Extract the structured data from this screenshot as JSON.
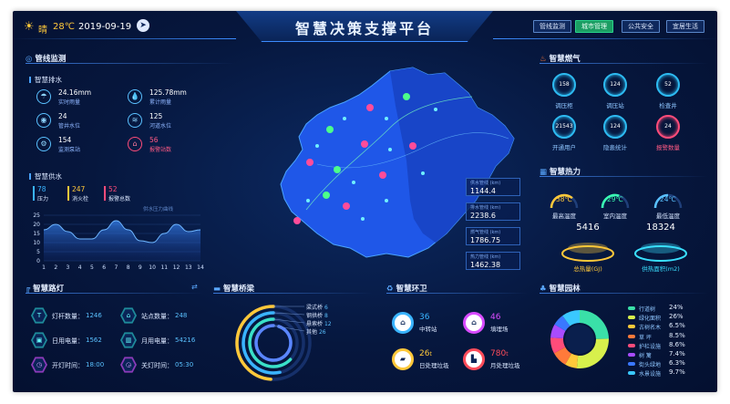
{
  "header": {
    "title": "智慧决策支撑平台",
    "weather": "晴",
    "temperature": "28℃",
    "date": "2019-09-19",
    "nav_tabs": [
      {
        "label": "管线监测",
        "active": false
      },
      {
        "label": "城市管理",
        "active": true
      },
      {
        "label": "公共安全",
        "active": false
      },
      {
        "label": "宜居生活",
        "active": false
      }
    ]
  },
  "pipeline": {
    "title": "管线监测",
    "drainage": {
      "title": "智慧排水",
      "items": [
        {
          "value": "24.16mm",
          "label": "实时雨量",
          "icon": "rain-icon",
          "alert": false
        },
        {
          "value": "125.78mm",
          "label": "累计雨量",
          "icon": "drops-icon",
          "alert": false
        },
        {
          "value": "24",
          "label": "管井水位",
          "icon": "well-icon",
          "alert": false
        },
        {
          "value": "125",
          "label": "河道水位",
          "icon": "river-icon",
          "alert": false
        },
        {
          "value": "154",
          "label": "监测泵站",
          "icon": "pump-icon",
          "alert": false
        },
        {
          "value": "56",
          "label": "报警站数",
          "icon": "alarm-house-icon",
          "alert": true
        }
      ]
    },
    "supply": {
      "title": "智慧供水",
      "stats": [
        {
          "value": "78",
          "label": "压力",
          "color": "#3ab4ff"
        },
        {
          "value": "247",
          "label": "消火栓",
          "color": "#ffc83a"
        },
        {
          "value": "52",
          "label": "报警总数",
          "color": "#ff4c7a"
        }
      ],
      "chart_caption": "供水压力曲线"
    }
  },
  "map_stats": [
    {
      "label": "供水管线 (km)",
      "value": "1144.4"
    },
    {
      "label": "排水管线 (km)",
      "value": "2238.6"
    },
    {
      "label": "燃气管线 (km)",
      "value": "1786.75"
    },
    {
      "label": "热力管线 (km)",
      "value": "1462.38"
    }
  ],
  "gas": {
    "title": "智慧燃气",
    "items": [
      {
        "value": "158",
        "label": "调压柜",
        "alert": false
      },
      {
        "value": "124",
        "label": "调压站",
        "alert": false
      },
      {
        "value": "52",
        "label": "检查井",
        "alert": false
      },
      {
        "value": "21543",
        "label": "开通用户",
        "alert": false
      },
      {
        "value": "124",
        "label": "隐患统计",
        "alert": false
      },
      {
        "value": "24",
        "label": "报警数量",
        "alert": true
      }
    ]
  },
  "heat": {
    "title": "智慧热力",
    "temps": [
      {
        "value": "38℃",
        "label": "最高温度",
        "color": "#ffc83a",
        "fraction": 0.72
      },
      {
        "value": "29℃",
        "label": "室内温度",
        "color": "#3affb4",
        "fraction": 0.6
      },
      {
        "value": "24℃",
        "label": "最低温度",
        "color": "#5ac1ff",
        "fraction": 0.5
      }
    ],
    "totals": [
      {
        "value": "5416",
        "label": "总热量(GJ)",
        "color": "#ffc83a"
      },
      {
        "value": "18324",
        "label": "供热面积(m2)",
        "color": "#3ae0ff"
      }
    ]
  },
  "lamps": {
    "title": "智慧路灯",
    "items": [
      {
        "label": "灯杆数量：",
        "value": "1246",
        "icon": "lamp-icon"
      },
      {
        "label": "站点数量：",
        "value": "248",
        "icon": "station-icon"
      },
      {
        "label": "日用电量：",
        "value": "1562",
        "icon": "day-power-icon"
      },
      {
        "label": "月用电量：",
        "value": "54216",
        "icon": "month-power-icon"
      },
      {
        "label": "开灯时间：",
        "value": "18:00",
        "icon": "on-time-icon"
      },
      {
        "label": "关灯时间：",
        "value": "05:30",
        "icon": "off-time-icon"
      }
    ]
  },
  "bridges": {
    "title": "智慧桥梁",
    "items": [
      {
        "label": "梁式桥",
        "value": "6",
        "color": "#ffc83a"
      },
      {
        "label": "钢拱桥",
        "value": "8",
        "color": "#3ab4ff"
      },
      {
        "label": "悬索桥",
        "value": "12",
        "color": "#3ae0c8"
      },
      {
        "label": "其他",
        "value": "26",
        "color": "#5a86ff"
      }
    ]
  },
  "sanitation": {
    "title": "智慧环卫",
    "items": [
      {
        "value": "36",
        "unit": "",
        "label": "中转站",
        "color": "#3ab4ff",
        "icon": "transfer-icon"
      },
      {
        "value": "46",
        "unit": "",
        "label": "填埋场",
        "color": "#d84cff",
        "icon": "landfill-icon"
      },
      {
        "value": "26",
        "unit": "t",
        "label": "日处理垃圾",
        "color": "#ffc83a",
        "icon": "truck-icon"
      },
      {
        "value": "780",
        "unit": "t",
        "label": "月处理垃圾",
        "color": "#ff4c5a",
        "icon": "factory-icon"
      }
    ]
  },
  "garden": {
    "title": "智慧园林",
    "chart_data": {
      "type": "pie",
      "categories": [
        "行道树",
        "绿化面积",
        "古树名木",
        "草 坪",
        "护栏设施",
        "树 篱",
        "街头绿地",
        "水景设施"
      ],
      "values": [
        24,
        26,
        6.5,
        8.5,
        8.6,
        7.4,
        6.3,
        9.7
      ],
      "labels": [
        "24%",
        "26%",
        "6.5%",
        "8.5%",
        "8.6%",
        "7.4%",
        "6.3%",
        "9.7%"
      ],
      "colors": [
        "#3ae0a8",
        "#d8f04c",
        "#ffc83a",
        "#ff7a3a",
        "#ff4c7a",
        "#a84cff",
        "#3a78ff",
        "#3ac8ff"
      ]
    }
  },
  "supply_chart": {
    "chart_data": {
      "type": "area",
      "x": [
        1,
        2,
        3,
        4,
        5,
        6,
        7,
        8,
        9,
        10,
        11,
        12,
        13,
        14
      ],
      "values": [
        17,
        20,
        16,
        12,
        12,
        17,
        22,
        17,
        11,
        10,
        15,
        20,
        16,
        17
      ],
      "xlim": [
        1,
        14
      ],
      "ylim": [
        0,
        25
      ],
      "yticks": [
        "0",
        "5",
        "10",
        "15",
        "20",
        "25"
      ],
      "xticks": [
        "1",
        "2",
        "3",
        "4",
        "5",
        "6",
        "7",
        "8",
        "9",
        "10",
        "11",
        "12",
        "13",
        "14"
      ]
    }
  }
}
